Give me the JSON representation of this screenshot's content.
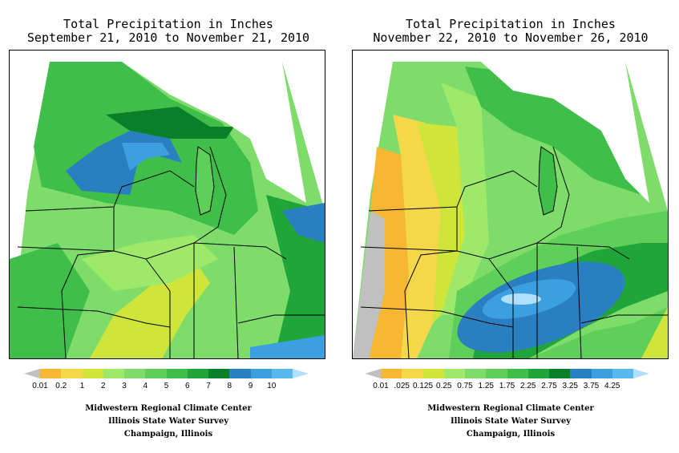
{
  "maps": [
    {
      "title_line1": "Total Precipitation in Inches",
      "title_line2": "September 21, 2010 to November 21, 2010",
      "legend": {
        "labels": [
          "0.01",
          "0.2",
          "1",
          "2",
          "3",
          "4",
          "5",
          "6",
          "7",
          "8",
          "9",
          "10"
        ],
        "colors": [
          "#f7b733",
          "#f5d84a",
          "#cfe53a",
          "#9ee86a",
          "#7ddc6a",
          "#5fcf5a",
          "#3fbf4a",
          "#1fa53a",
          "#0a7f2a",
          "#2a7fc0",
          "#3c9fe0",
          "#5ab8f0"
        ],
        "under_color": "#c0c0c0",
        "over_color": "#b0e0ff"
      },
      "credits": [
        "Midwestern Regional Climate Center",
        "Illinois State Water Survey",
        "Champaign, Illinois"
      ]
    },
    {
      "title_line1": "Total Precipitation in Inches",
      "title_line2": "November 22, 2010 to November 26, 2010",
      "legend": {
        "labels": [
          "0.01",
          ".025",
          "0.125",
          "0.25",
          "0.75",
          "1.25",
          "1.75",
          "2.25",
          "2.75",
          "3.25",
          "3.75",
          "4.25"
        ],
        "colors": [
          "#f7b733",
          "#f5d84a",
          "#cfe53a",
          "#9ee86a",
          "#7ddc6a",
          "#5fcf5a",
          "#3fbf4a",
          "#1fa53a",
          "#0a7f2a",
          "#2a7fc0",
          "#3c9fe0",
          "#5ab8f0"
        ],
        "under_color": "#c0c0c0",
        "over_color": "#b0e0ff"
      },
      "credits": [
        "Midwestern Regional Climate Center",
        "Illinois State Water Survey",
        "Champaign, Illinois"
      ]
    }
  ]
}
